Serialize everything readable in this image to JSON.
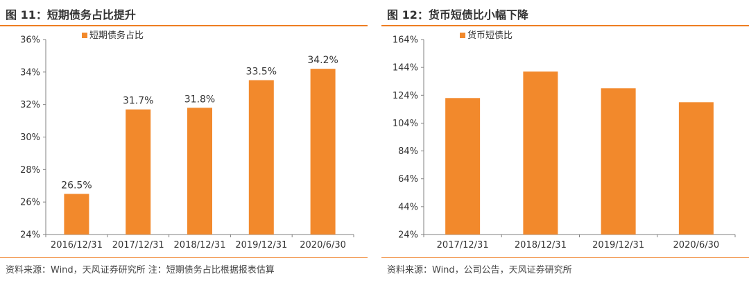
{
  "colors": {
    "accent": "#ee7d22",
    "bar": "#f2892c",
    "axis": "#808080"
  },
  "charts": [
    {
      "title": "图 11：短期债务占比提升",
      "source": "资料来源：Wind，天风证券研究所    注：短期债务占比根据报表估算",
      "chart_data": {
        "type": "bar",
        "categories": [
          "2016/12/31",
          "2017/12/31",
          "2018/12/31",
          "2019/12/31",
          "2020/6/30"
        ],
        "series": [
          {
            "name": "短期债务占比",
            "values": [
              26.5,
              31.7,
              31.8,
              33.5,
              34.2
            ]
          }
        ],
        "data_labels": [
          "26.5%",
          "31.7%",
          "31.8%",
          "33.5%",
          "34.2%"
        ],
        "yticks": [
          "24%",
          "26%",
          "28%",
          "30%",
          "32%",
          "34%",
          "36%"
        ],
        "ylim": [
          24,
          36
        ],
        "ystep": 2,
        "legend": "top-left",
        "grid": false
      }
    },
    {
      "title": "图 12：货币短债比小幅下降",
      "source": "资料来源：Wind，公司公告，天风证券研究所",
      "chart_data": {
        "type": "bar",
        "categories": [
          "2017/12/31",
          "2018/12/31",
          "2019/12/31",
          "2020/6/30"
        ],
        "series": [
          {
            "name": "货币短债比",
            "values": [
              122,
              141,
              129,
              119
            ]
          }
        ],
        "yticks": [
          "24%",
          "44%",
          "64%",
          "84%",
          "104%",
          "124%",
          "144%",
          "164%"
        ],
        "ylim": [
          24,
          164
        ],
        "ystep": 20,
        "legend": "top-left",
        "grid": false
      }
    }
  ]
}
